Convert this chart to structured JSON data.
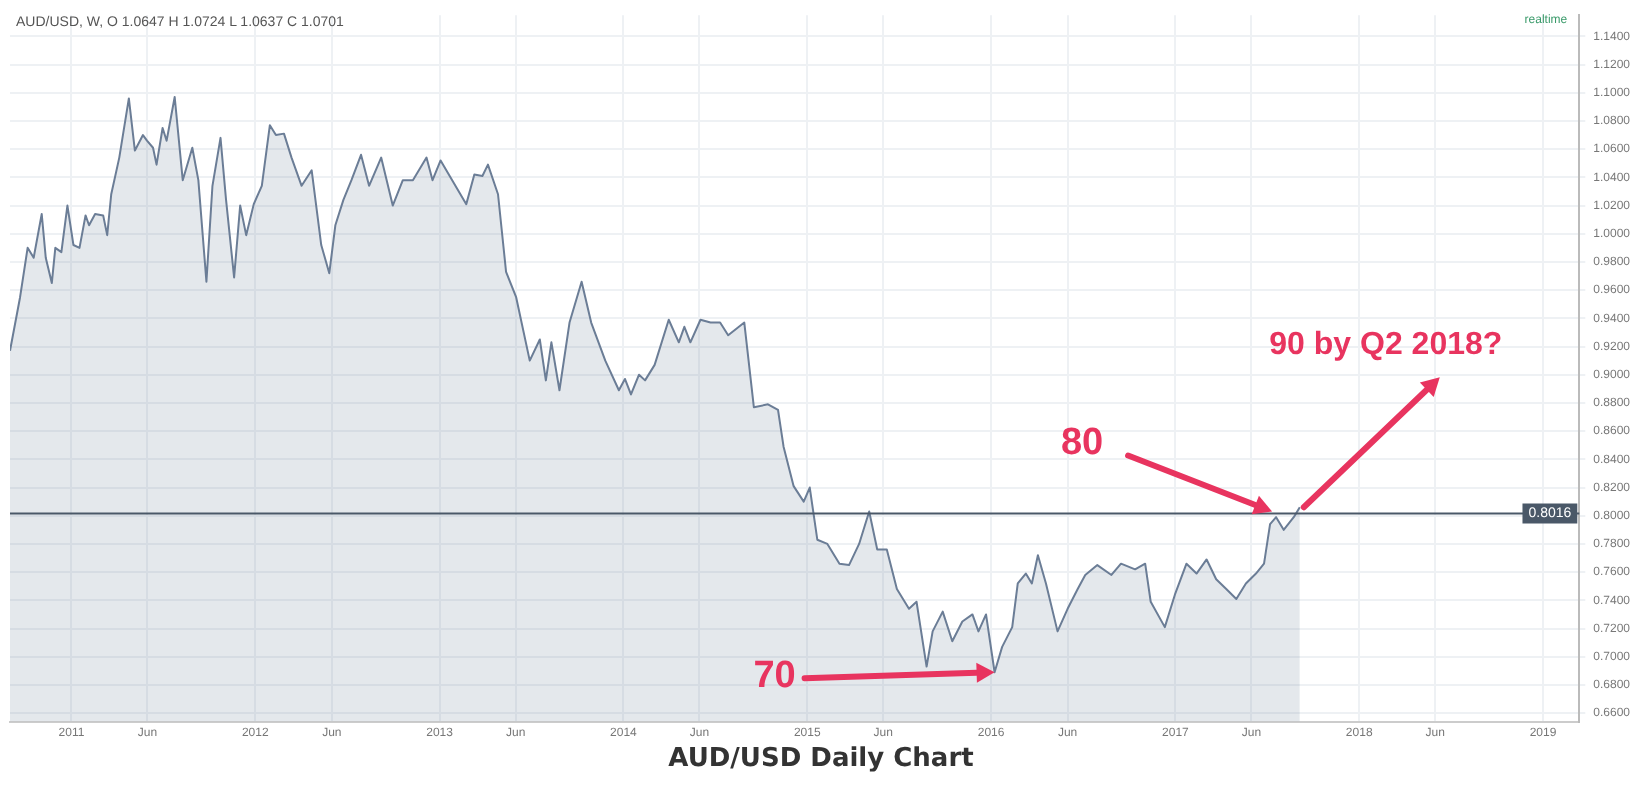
{
  "chart_data": {
    "type": "area",
    "title": "AUD/USD Daily Chart",
    "subtitle": "AUD/USD, W, O 1.0647 H 1.0724 L 1.0637 C 1.0701",
    "annotations": [
      "realtime",
      {
        "text": "70",
        "x": "2016-01-08",
        "y": 0.689
      },
      {
        "text": "80",
        "x": "2017-07-12",
        "y": 0.803
      },
      "90 by Q2 2018?"
    ],
    "x": [
      "2010-09-01",
      "2010-09-21",
      "2010-10-06",
      "2010-10-18",
      "2010-11-03",
      "2010-11-11",
      "2010-11-23",
      "2010-11-30",
      "2010-12-12",
      "2010-12-24",
      "2011-01-05",
      "2011-01-17",
      "2011-01-29",
      "2011-02-05",
      "2011-02-17",
      "2011-03-05",
      "2011-03-13",
      "2011-03-21",
      "2011-04-06",
      "2011-04-25",
      "2011-05-07",
      "2011-05-23",
      "2011-05-31",
      "2011-06-12",
      "2011-06-19",
      "2011-07-01",
      "2011-07-09",
      "2011-07-25",
      "2011-08-10",
      "2011-08-29",
      "2011-09-10",
      "2011-09-26",
      "2011-10-08",
      "2011-10-24",
      "2011-11-04",
      "2011-11-20",
      "2011-12-02",
      "2011-12-14",
      "2011-12-29",
      "2012-01-14",
      "2012-01-30",
      "2012-02-11",
      "2012-02-27",
      "2012-03-13",
      "2012-04-02",
      "2012-04-22",
      "2012-05-11",
      "2012-05-27",
      "2012-06-08",
      "2012-06-24",
      "2012-07-10",
      "2012-07-29",
      "2012-08-14",
      "2012-09-07",
      "2012-09-30",
      "2012-10-20",
      "2012-11-09",
      "2012-12-06",
      "2012-12-18",
      "2013-01-03",
      "2013-01-26",
      "2013-02-23",
      "2013-03-11",
      "2013-03-27",
      "2013-04-07",
      "2013-04-27",
      "2013-05-13",
      "2013-06-02",
      "2013-06-29",
      "2013-07-19",
      "2013-07-31",
      "2013-08-11",
      "2013-08-27",
      "2013-09-16",
      "2013-10-10",
      "2013-10-29",
      "2013-11-26",
      "2013-12-23",
      "2014-01-04",
      "2014-01-16",
      "2014-02-01",
      "2014-02-13",
      "2014-03-04",
      "2014-04-01",
      "2014-04-21",
      "2014-05-02",
      "2014-05-14",
      "2014-06-03",
      "2014-06-23",
      "2014-07-12",
      "2014-07-28",
      "2014-08-29",
      "2014-09-17",
      "2014-10-15",
      "2014-11-04",
      "2014-11-15",
      "2014-12-05",
      "2014-12-25",
      "2015-01-06",
      "2015-01-21",
      "2015-02-10",
      "2015-03-06",
      "2015-03-25",
      "2015-04-14",
      "2015-05-04",
      "2015-05-20",
      "2015-06-08",
      "2015-06-28",
      "2015-07-22",
      "2015-08-06",
      "2015-08-26",
      "2015-09-07",
      "2015-09-27",
      "2015-10-16",
      "2015-11-05",
      "2015-11-25",
      "2015-12-07",
      "2015-12-22",
      "2016-01-08",
      "2016-01-23",
      "2016-02-12",
      "2016-02-23",
      "2016-03-10",
      "2016-03-22",
      "2016-04-03",
      "2016-04-19",
      "2016-05-12",
      "2016-06-01",
      "2016-06-21",
      "2016-07-06",
      "2016-07-30",
      "2016-08-27",
      "2016-09-15",
      "2016-10-13",
      "2016-11-02",
      "2016-11-13",
      "2016-12-11",
      "2016-12-31",
      "2017-01-23",
      "2017-02-12",
      "2017-03-04",
      "2017-03-23",
      "2017-04-12",
      "2017-05-02",
      "2017-05-21",
      "2017-06-10",
      "2017-06-26",
      "2017-07-08",
      "2017-07-20",
      "2017-08-04",
      "2017-08-24",
      "2017-09-05"
    ],
    "series": [
      {
        "color": "#6b7d96",
        "values": [
          0.917,
          0.955,
          0.99,
          0.983,
          1.014,
          0.983,
          0.965,
          0.99,
          0.987,
          1.02,
          0.992,
          0.99,
          1.013,
          1.006,
          1.014,
          1.013,
          0.999,
          1.028,
          1.054,
          1.096,
          1.059,
          1.07,
          1.066,
          1.061,
          1.049,
          1.075,
          1.066,
          1.097,
          1.038,
          1.061,
          1.038,
          0.966,
          1.034,
          1.068,
          1.024,
          0.969,
          1.02,
          0.999,
          1.021,
          1.034,
          1.077,
          1.07,
          1.071,
          1.054,
          1.034,
          1.045,
          0.992,
          0.972,
          1.006,
          1.024,
          1.038,
          1.056,
          1.034,
          1.054,
          1.02,
          1.038,
          1.038,
          1.054,
          1.038,
          1.052,
          1.038,
          1.021,
          1.042,
          1.041,
          1.049,
          1.028,
          0.973,
          0.955,
          0.91,
          0.925,
          0.896,
          0.923,
          0.889,
          0.937,
          0.966,
          0.937,
          0.91,
          0.889,
          0.897,
          0.886,
          0.9,
          0.896,
          0.907,
          0.939,
          0.923,
          0.934,
          0.923,
          0.939,
          0.937,
          0.937,
          0.928,
          0.937,
          0.877,
          0.879,
          0.875,
          0.849,
          0.821,
          0.81,
          0.82,
          0.783,
          0.78,
          0.766,
          0.765,
          0.78,
          0.803,
          0.776,
          0.776,
          0.748,
          0.734,
          0.739,
          0.693,
          0.718,
          0.732,
          0.711,
          0.725,
          0.73,
          0.718,
          0.73,
          0.689,
          0.707,
          0.721,
          0.752,
          0.759,
          0.752,
          0.772,
          0.752,
          0.718,
          0.734,
          0.748,
          0.758,
          0.765,
          0.758,
          0.766,
          0.762,
          0.766,
          0.739,
          0.721,
          0.744,
          0.766,
          0.759,
          0.769,
          0.755,
          0.748,
          0.741,
          0.752,
          0.759,
          0.766,
          0.794,
          0.799,
          0.79,
          0.799,
          0.806
        ]
      }
    ],
    "xlim": [
      "2010-09-01",
      "2019-03-14"
    ],
    "xticks": [
      {
        "value": "2011-01-01",
        "label": "2011"
      },
      {
        "value": "2011-06-01",
        "label": "Jun"
      },
      {
        "value": "2012-01-01",
        "label": "2012"
      },
      {
        "value": "2012-06-01",
        "label": "Jun"
      },
      {
        "value": "2013-01-01",
        "label": "2013"
      },
      {
        "value": "2013-06-01",
        "label": "Jun"
      },
      {
        "value": "2014-01-01",
        "label": "2014"
      },
      {
        "value": "2014-06-01",
        "label": "Jun"
      },
      {
        "value": "2015-01-01",
        "label": "2015"
      },
      {
        "value": "2015-06-01",
        "label": "Jun"
      },
      {
        "value": "2016-01-01",
        "label": "2016"
      },
      {
        "value": "2016-06-01",
        "label": "Jun"
      },
      {
        "value": "2017-01-01",
        "label": "2017"
      },
      {
        "value": "2017-06-01",
        "label": "Jun"
      },
      {
        "value": "2018-01-01",
        "label": "2018"
      },
      {
        "value": "2018-06-01",
        "label": "Jun"
      },
      {
        "value": "2019-01-01",
        "label": "2019"
      }
    ],
    "ylim": [
      0.654,
      1.155
    ],
    "yticks": [
      {
        "value": 0.66,
        "label": "0.6600"
      },
      {
        "value": 0.68,
        "label": "0.6800"
      },
      {
        "value": 0.7,
        "label": "0.7000"
      },
      {
        "value": 0.72,
        "label": "0.7200"
      },
      {
        "value": 0.74,
        "label": "0.7400"
      },
      {
        "value": 0.76,
        "label": "0.7600"
      },
      {
        "value": 0.78,
        "label": "0.7800"
      },
      {
        "value": 0.8,
        "label": "0.8000"
      },
      {
        "value": 0.82,
        "label": "0.8200"
      },
      {
        "value": 0.84,
        "label": "0.8400"
      },
      {
        "value": 0.86,
        "label": "0.8600"
      },
      {
        "value": 0.88,
        "label": "0.8800"
      },
      {
        "value": 0.9,
        "label": "0.9000"
      },
      {
        "value": 0.92,
        "label": "0.9200"
      },
      {
        "value": 0.94,
        "label": "0.9400"
      },
      {
        "value": 0.96,
        "label": "0.9600"
      },
      {
        "value": 0.98,
        "label": "0.9800"
      },
      {
        "value": 1.0,
        "label": "1.0000"
      },
      {
        "value": 1.02,
        "label": "1.0200"
      },
      {
        "value": 1.04,
        "label": "1.0400"
      },
      {
        "value": 1.06,
        "label": "1.0600"
      },
      {
        "value": 1.08,
        "label": "1.0800"
      },
      {
        "value": 1.1,
        "label": "1.1000"
      },
      {
        "value": 1.12,
        "label": "1.1200"
      },
      {
        "value": 1.14,
        "label": "1.1400"
      }
    ],
    "ref_lines": [
      {
        "axis": "y",
        "value": 0.8016,
        "label": "0.8016",
        "color": "#4a5868"
      }
    ],
    "grid": true
  }
}
